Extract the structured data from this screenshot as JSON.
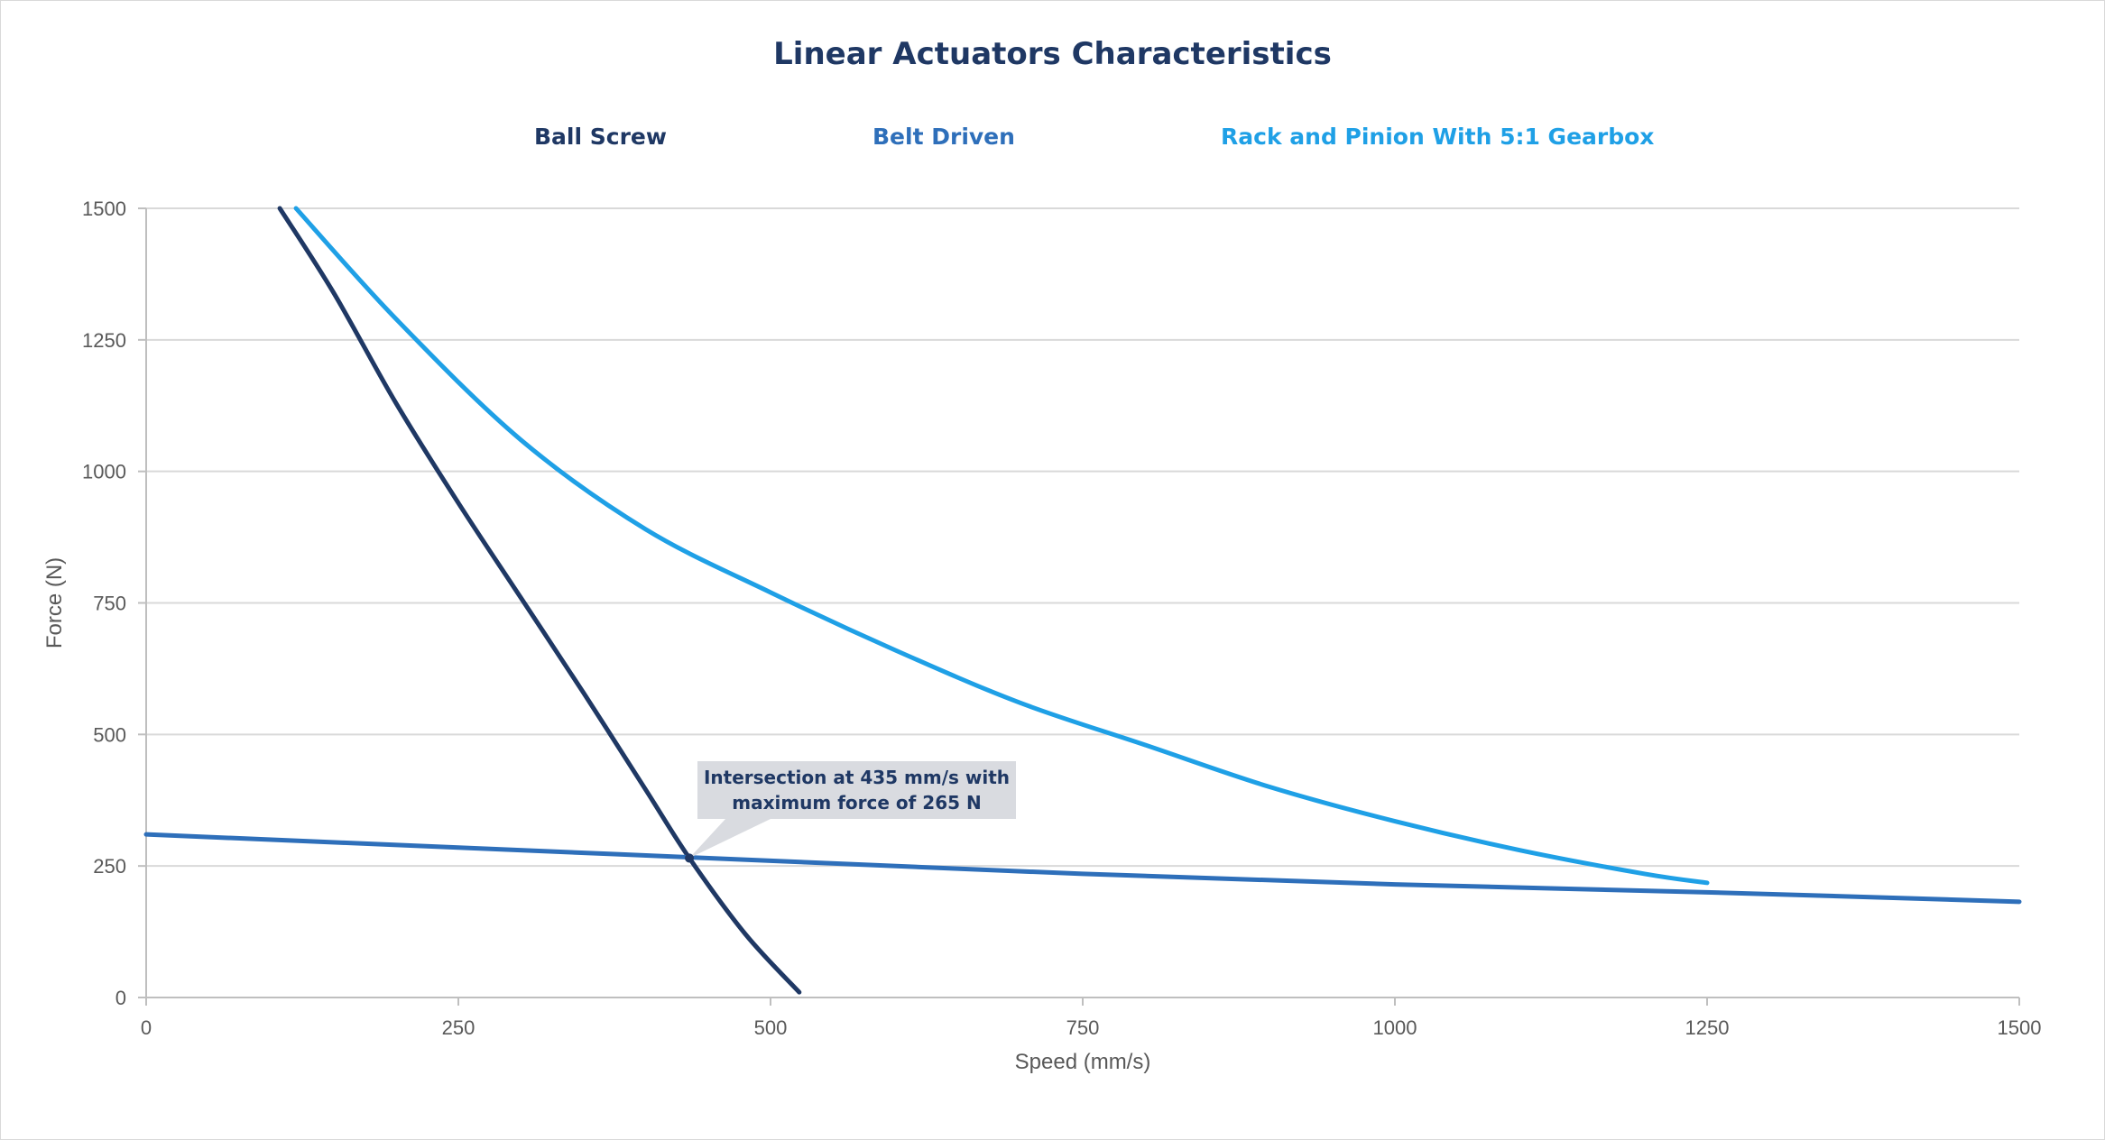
{
  "chart_data": {
    "type": "line",
    "title": "Linear Actuators Characteristics",
    "xlabel": "Speed (mm/s)",
    "ylabel": "Force (N)",
    "xlim": [
      0,
      1500
    ],
    "ylim": [
      0,
      1500
    ],
    "x_ticks": [
      0,
      250,
      500,
      750,
      1000,
      1250,
      1500
    ],
    "y_ticks": [
      0,
      250,
      500,
      750,
      1000,
      1250,
      1500
    ],
    "grid": "horizontal",
    "legend_position": "top",
    "series": [
      {
        "name": "Ball Screw",
        "color": "#1f3864",
        "x": [
          107,
          150,
          200,
          250,
          300,
          350,
          400,
          435,
          480,
          523
        ],
        "y": [
          1500,
          1340,
          1130,
          940,
          760,
          580,
          395,
          265,
          120,
          10
        ]
      },
      {
        "name": "Belt Driven",
        "color": "#2e6fba",
        "x": [
          0,
          250,
          500,
          750,
          1000,
          1250,
          1500
        ],
        "y": [
          310,
          285,
          260,
          235,
          215,
          200,
          182
        ]
      },
      {
        "name": "Rack and Pinion With 5:1 Gearbox",
        "color": "#1fa0e6",
        "x": [
          120,
          200,
          300,
          400,
          500,
          600,
          700,
          800,
          900,
          1000,
          1100,
          1200,
          1250
        ],
        "y": [
          1500,
          1290,
          1060,
          890,
          770,
          660,
          560,
          480,
          400,
          335,
          280,
          235,
          218
        ]
      }
    ],
    "annotation": {
      "line1": "Intersection at 435 mm/s with",
      "line2": "maximum force of 265 N",
      "point_x": 435,
      "point_y": 265
    }
  }
}
